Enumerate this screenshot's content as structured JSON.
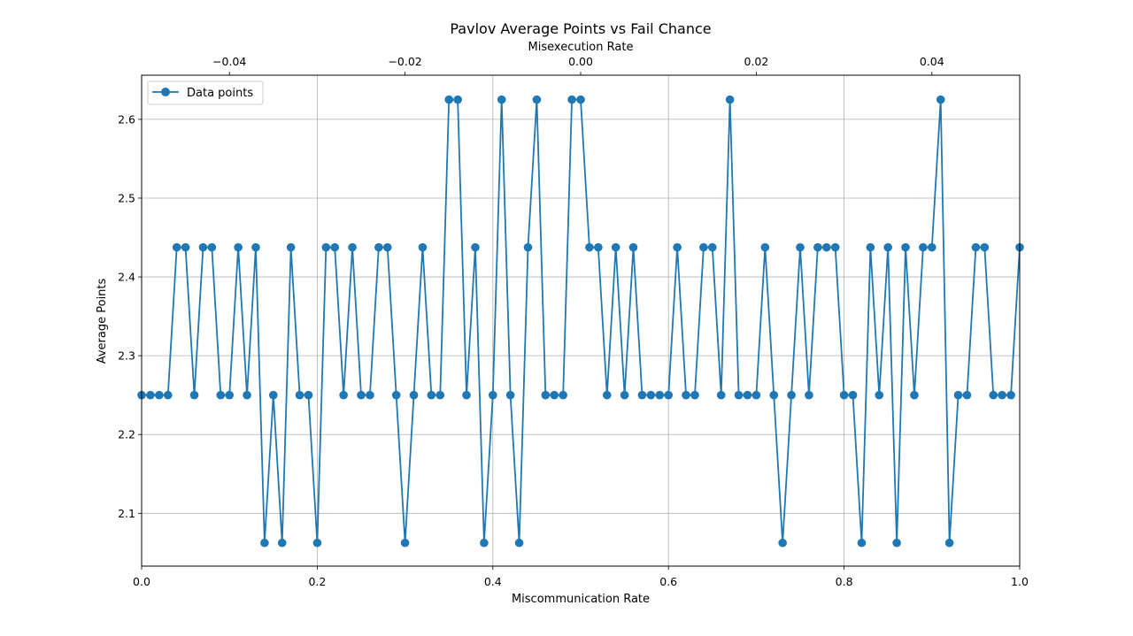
{
  "chart_data": {
    "type": "line",
    "title": "Pavlov Average Points vs Fail Chance",
    "xlabel": "Miscommunication Rate",
    "ylabel": "Average Points",
    "top_xlabel": "Misexecution Rate",
    "xlim": [
      0,
      1
    ],
    "ylim": [
      2.033,
      2.656
    ],
    "top_xlim": [
      -0.05,
      0.05
    ],
    "x_ticks": [
      "0.0",
      "0.2",
      "0.4",
      "0.6",
      "0.8",
      "1.0"
    ],
    "x_tick_values": [
      0,
      0.2,
      0.4,
      0.6,
      0.8,
      1.0
    ],
    "top_x_ticks": [
      "−0.04",
      "−0.02",
      "0.00",
      "0.02",
      "0.04"
    ],
    "top_x_tick_values": [
      -0.04,
      -0.02,
      0.0,
      0.02,
      0.04
    ],
    "y_ticks": [
      "2.1",
      "2.2",
      "2.3",
      "2.4",
      "2.5",
      "2.6"
    ],
    "y_tick_values": [
      2.1,
      2.2,
      2.3,
      2.4,
      2.5,
      2.6
    ],
    "grid": true,
    "legend_position": "top-left",
    "series": [
      {
        "name": "Data points",
        "color": "#1f77b4",
        "x": [
          0.0,
          0.01,
          0.02,
          0.03,
          0.04,
          0.05,
          0.06,
          0.07,
          0.08,
          0.09,
          0.1,
          0.11,
          0.12,
          0.13,
          0.14,
          0.15,
          0.16,
          0.17,
          0.18,
          0.19,
          0.2,
          0.21,
          0.22,
          0.23,
          0.24,
          0.25,
          0.26,
          0.27,
          0.28,
          0.29,
          0.3,
          0.31,
          0.32,
          0.33,
          0.34,
          0.35,
          0.36,
          0.37,
          0.38,
          0.39,
          0.4,
          0.41,
          0.42,
          0.43,
          0.44,
          0.45,
          0.46,
          0.47,
          0.48,
          0.49,
          0.5,
          0.51,
          0.52,
          0.53,
          0.54,
          0.55,
          0.56,
          0.57,
          0.58,
          0.59,
          0.6,
          0.61,
          0.62,
          0.63,
          0.64,
          0.65,
          0.66,
          0.67,
          0.68,
          0.69,
          0.7,
          0.71,
          0.72,
          0.73,
          0.74,
          0.75,
          0.76,
          0.77,
          0.78,
          0.79,
          0.8,
          0.81,
          0.82,
          0.83,
          0.84,
          0.85,
          0.86,
          0.87,
          0.88,
          0.89,
          0.9,
          0.91,
          0.92,
          0.93,
          0.94,
          0.95,
          0.96,
          0.97,
          0.98,
          0.99,
          1.0
        ],
        "y": [
          2.25,
          2.25,
          2.25,
          2.25,
          2.4375,
          2.4375,
          2.25,
          2.4375,
          2.4375,
          2.25,
          2.25,
          2.4375,
          2.25,
          2.4375,
          2.0625,
          2.25,
          2.0625,
          2.4375,
          2.25,
          2.25,
          2.0625,
          2.4375,
          2.4375,
          2.25,
          2.4375,
          2.25,
          2.25,
          2.4375,
          2.4375,
          2.25,
          2.0625,
          2.25,
          2.4375,
          2.25,
          2.25,
          2.625,
          2.625,
          2.25,
          2.4375,
          2.0625,
          2.25,
          2.625,
          2.25,
          2.0625,
          2.4375,
          2.625,
          2.25,
          2.25,
          2.25,
          2.625,
          2.625,
          2.4375,
          2.4375,
          2.25,
          2.4375,
          2.25,
          2.4375,
          2.25,
          2.25,
          2.25,
          2.25,
          2.4375,
          2.25,
          2.25,
          2.4375,
          2.4375,
          2.25,
          2.625,
          2.25,
          2.25,
          2.25,
          2.4375,
          2.25,
          2.0625,
          2.25,
          2.4375,
          2.25,
          2.4375,
          2.4375,
          2.4375,
          2.25,
          2.25,
          2.0625,
          2.4375,
          2.25,
          2.4375,
          2.0625,
          2.4375,
          2.25,
          2.4375,
          2.4375,
          2.625,
          2.0625,
          2.25,
          2.25,
          2.4375,
          2.4375,
          2.25,
          2.25,
          2.25,
          2.4375
        ]
      }
    ]
  }
}
